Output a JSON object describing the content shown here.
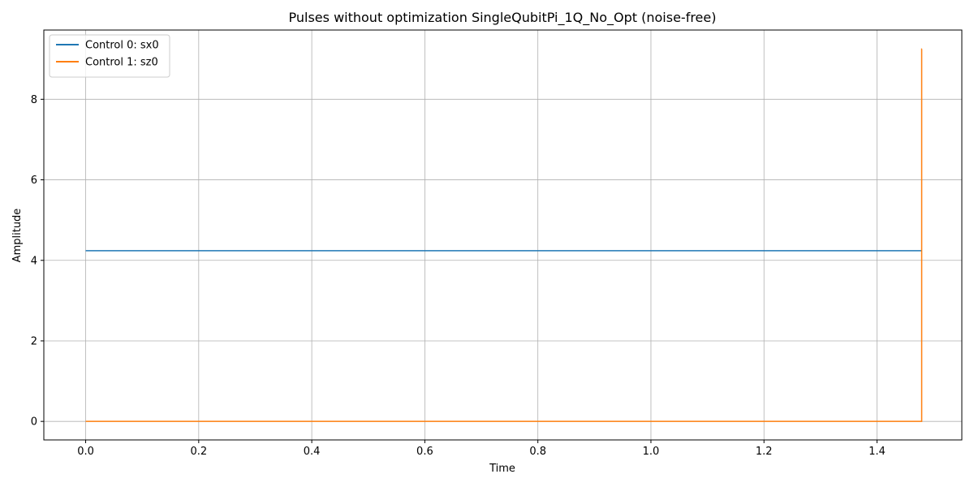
{
  "chart_data": {
    "type": "line",
    "title": "Pulses without optimization SingleQubitPi_1Q_No_Opt (noise-free)",
    "xlabel": "Time",
    "ylabel": "Amplitude",
    "xlim": [
      -0.074,
      1.55
    ],
    "ylim": [
      -0.46,
      9.72
    ],
    "xticks": [
      0.0,
      0.2,
      0.4,
      0.6,
      0.8,
      1.0,
      1.2,
      1.4
    ],
    "xtick_labels": [
      "0.0",
      "0.2",
      "0.4",
      "0.6",
      "0.8",
      "1.0",
      "1.2",
      "1.4"
    ],
    "yticks": [
      0,
      2,
      4,
      6,
      8
    ],
    "ytick_labels": [
      "0",
      "2",
      "4",
      "6",
      "8"
    ],
    "grid": true,
    "legend_position": "top-left",
    "series": [
      {
        "name": "Control 0: sx0",
        "color": "#1f77b4",
        "step": true,
        "x": [
          0.0,
          1.4795
        ],
        "y": [
          4.24,
          4.24
        ]
      },
      {
        "name": "Control 1: sz0",
        "color": "#ff7f0e",
        "step": true,
        "x": [
          0.0,
          1.479,
          1.479,
          1.4795
        ],
        "y": [
          0.0,
          0.0,
          9.25,
          9.25
        ]
      }
    ]
  }
}
